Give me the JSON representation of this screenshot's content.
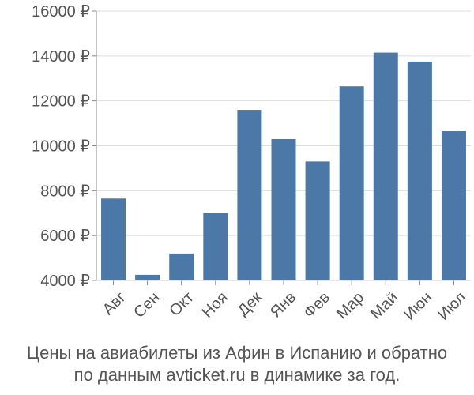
{
  "chart_data": {
    "type": "bar",
    "categories": [
      "Авг",
      "Сен",
      "Окт",
      "Ноя",
      "Дек",
      "Янв",
      "Фев",
      "Мар",
      "Май",
      "Июн",
      "Июл"
    ],
    "values": [
      7650,
      4250,
      5200,
      7000,
      11600,
      10300,
      9300,
      12650,
      14150,
      13750,
      10650
    ],
    "ytick_labels": [
      "4000 ₽",
      "6000 ₽",
      "8000 ₽",
      "10000 ₽",
      "12000 ₽",
      "14000 ₽",
      "16000 ₽"
    ],
    "yticks": [
      4000,
      6000,
      8000,
      10000,
      12000,
      14000,
      16000
    ],
    "ylim": [
      4000,
      16000
    ],
    "bar_color": "#4c78a8",
    "grid": true
  },
  "caption": {
    "line1": "Цены на авиабилеты из Афин в Испанию и обратно",
    "line2": "по данным avticket.ru в динамике за год."
  }
}
